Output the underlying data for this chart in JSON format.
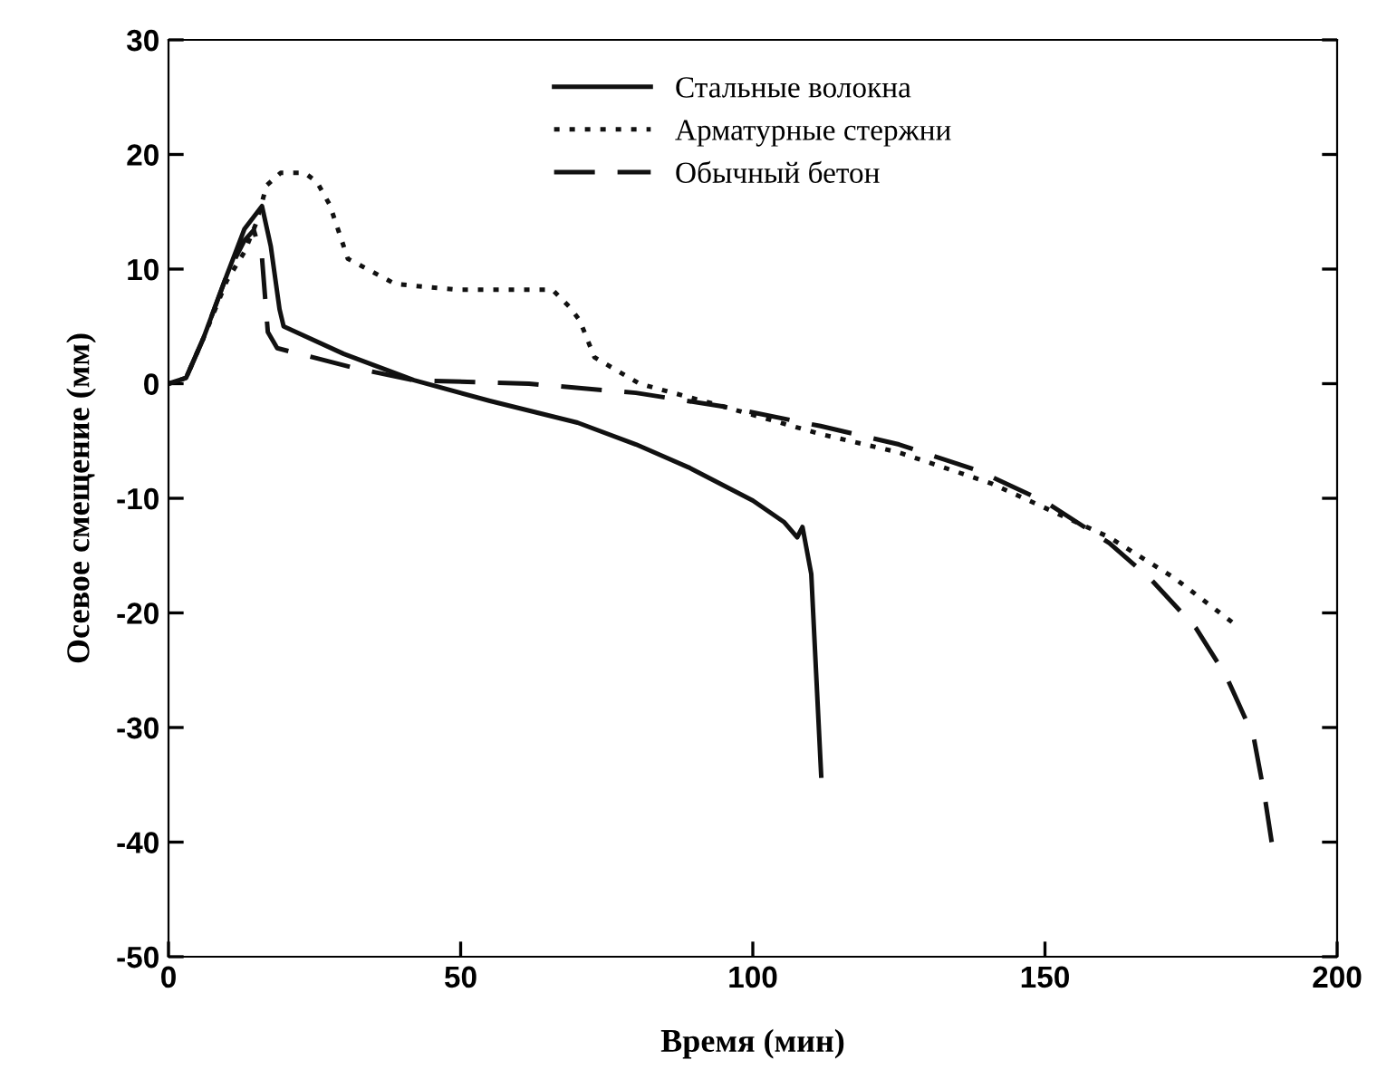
{
  "chart_data": {
    "type": "line",
    "xlabel": "Время (мин)",
    "ylabel": "Осевое смещение (мм)",
    "xlim": [
      0,
      200
    ],
    "xticks": [
      0,
      50,
      100,
      150,
      200
    ],
    "ylim": [
      -50,
      30
    ],
    "yticks": [
      -50,
      -40,
      -30,
      -20,
      -10,
      0,
      10,
      20,
      30
    ],
    "grid": false,
    "legend": "top",
    "marker": "none",
    "series": [
      {
        "name": "Стальные волокна",
        "color": "#111111",
        "line_style": "solid",
        "x": [
          0,
          3,
          6,
          10,
          13,
          16,
          17.5,
          19,
          19.7,
          30,
          42,
          55,
          70,
          80,
          89,
          100,
          105.4,
          107.6,
          108.5,
          110,
          111.7
        ],
        "values": [
          0,
          0.5,
          4,
          9.5,
          13.5,
          15.5,
          12,
          6.5,
          5.0,
          2.6,
          0.3,
          -1.5,
          -3.4,
          -5.3,
          -7.3,
          -10.2,
          -12.1,
          -13.4,
          -12.5,
          -16.6,
          -34.2
        ]
      },
      {
        "name": "Арматурные стержни",
        "color": "#111111",
        "line_style": "dotted",
        "x": [
          0,
          3,
          6,
          10,
          13,
          15,
          16.8,
          19.2,
          23.3,
          25.4,
          27.6,
          30.7,
          38.8,
          49.3,
          65.7,
          68.8,
          70.4,
          72.9,
          80.6,
          95,
          111.6,
          125,
          140.8,
          161,
          172,
          182
        ],
        "values": [
          0,
          0.5,
          4,
          9,
          11.5,
          14,
          17.3,
          18.4,
          18.4,
          17.6,
          15.6,
          10.9,
          8.7,
          8.2,
          8.2,
          6.6,
          5.5,
          2.3,
          0,
          -2.0,
          -4.4,
          -6.0,
          -8.7,
          -13.4,
          -16.9,
          -20.8
        ]
      },
      {
        "name": "Обычный бетон",
        "color": "#111111",
        "line_style": "dashed",
        "x": [
          0,
          3,
          6,
          10,
          13,
          14.6,
          16,
          17,
          18.6,
          31.6,
          42,
          61.7,
          80,
          95,
          111.6,
          125,
          138.6,
          150,
          161,
          168,
          175.8,
          181,
          185.7,
          187.6,
          188.8
        ],
        "values": [
          0,
          0.5,
          4,
          9.5,
          12.5,
          13.4,
          11,
          4.5,
          3.1,
          1.4,
          0.3,
          0,
          -0.8,
          -2.0,
          -3.7,
          -5.3,
          -7.6,
          -10.3,
          -13.9,
          -17.0,
          -21.3,
          -25.5,
          -30.8,
          -36,
          -40
        ]
      }
    ]
  }
}
